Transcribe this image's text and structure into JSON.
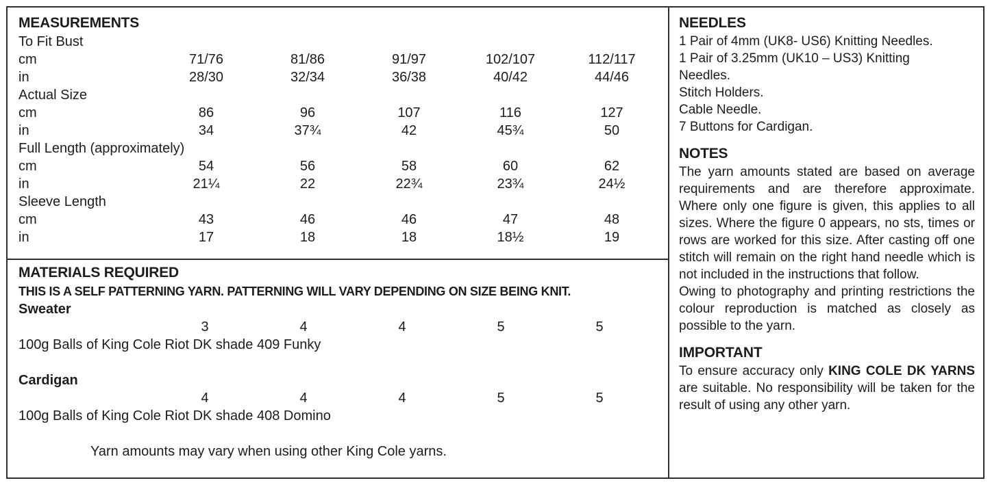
{
  "colors": {
    "background": "#ffffff",
    "text": "#1c1c1c",
    "border": "#2e2e2e"
  },
  "measurements": {
    "title": "MEASUREMENTS",
    "rows": [
      {
        "type": "label",
        "text": "To Fit Bust"
      },
      {
        "type": "data",
        "label": "cm",
        "values": [
          "71/76",
          "81/86",
          "91/97",
          "102/107",
          "112/117"
        ]
      },
      {
        "type": "data",
        "label": "in",
        "values": [
          "28/30",
          "32/34",
          "36/38",
          "40/42",
          "44/46"
        ]
      },
      {
        "type": "label",
        "text": "Actual Size"
      },
      {
        "type": "data",
        "label": "cm",
        "values": [
          "86",
          "96",
          "107",
          "116",
          "127"
        ]
      },
      {
        "type": "data",
        "label": "in",
        "values": [
          "34",
          "37¾",
          "42",
          "45¾",
          "50"
        ]
      },
      {
        "type": "label",
        "text": "Full Length (approximately)"
      },
      {
        "type": "data",
        "label": "cm",
        "values": [
          "54",
          "56",
          "58",
          "60",
          "62"
        ]
      },
      {
        "type": "data",
        "label": "in",
        "values": [
          "21¼",
          "22",
          "22¾",
          "23¾",
          "24½"
        ]
      },
      {
        "type": "label",
        "text": "Sleeve Length"
      },
      {
        "type": "data",
        "label": "cm",
        "values": [
          "43",
          "46",
          "46",
          "47",
          "48"
        ]
      },
      {
        "type": "data",
        "label": "in",
        "values": [
          "17",
          "18",
          "18",
          "18½",
          "19"
        ]
      }
    ]
  },
  "materials": {
    "title": "MATERIALS REQUIRED",
    "subtitle": "THIS IS A SELF PATTERNING YARN. PATTERNING WILL VARY DEPENDING ON SIZE BEING KNIT.",
    "items": [
      {
        "name": "Sweater",
        "quantities": [
          "3",
          "4",
          "4",
          "5",
          "5"
        ],
        "description": "100g Balls of King Cole Riot DK shade 409 Funky"
      },
      {
        "name": "Cardigan",
        "quantities": [
          "4",
          "4",
          "4",
          "5",
          "5"
        ],
        "description": "100g Balls of King Cole Riot DK shade 408 Domino"
      }
    ],
    "footnote": "Yarn amounts may vary when using other King Cole yarns."
  },
  "needles": {
    "title": "NEEDLES",
    "lines": [
      "1 Pair of 4mm (UK8- US6) Knitting Needles.",
      "1 Pair of 3.25mm (UK10 – US3) Knitting",
      "Needles.",
      "Stitch Holders.",
      "Cable Needle.",
      "7 Buttons for Cardigan."
    ]
  },
  "notes": {
    "title": "NOTES",
    "paragraphs": [
      "The yarn amounts stated are based on average requirements and are therefore approximate. Where only one figure is given, this applies to all sizes. Where the figure 0 appears, no sts, times or rows are worked for this size. After casting off one stitch will remain on the right hand needle which is not included in the instructions that follow.",
      "Owing to photography and printing restrictions the colour reproduction is matched as closely as possible to the yarn."
    ]
  },
  "important": {
    "title": "IMPORTANT",
    "text_before": "To ensure accuracy only ",
    "text_bold": "KING COLE DK YARNS",
    "text_after": " are suitable. No responsibility will be taken for the result of using any other yarn."
  }
}
